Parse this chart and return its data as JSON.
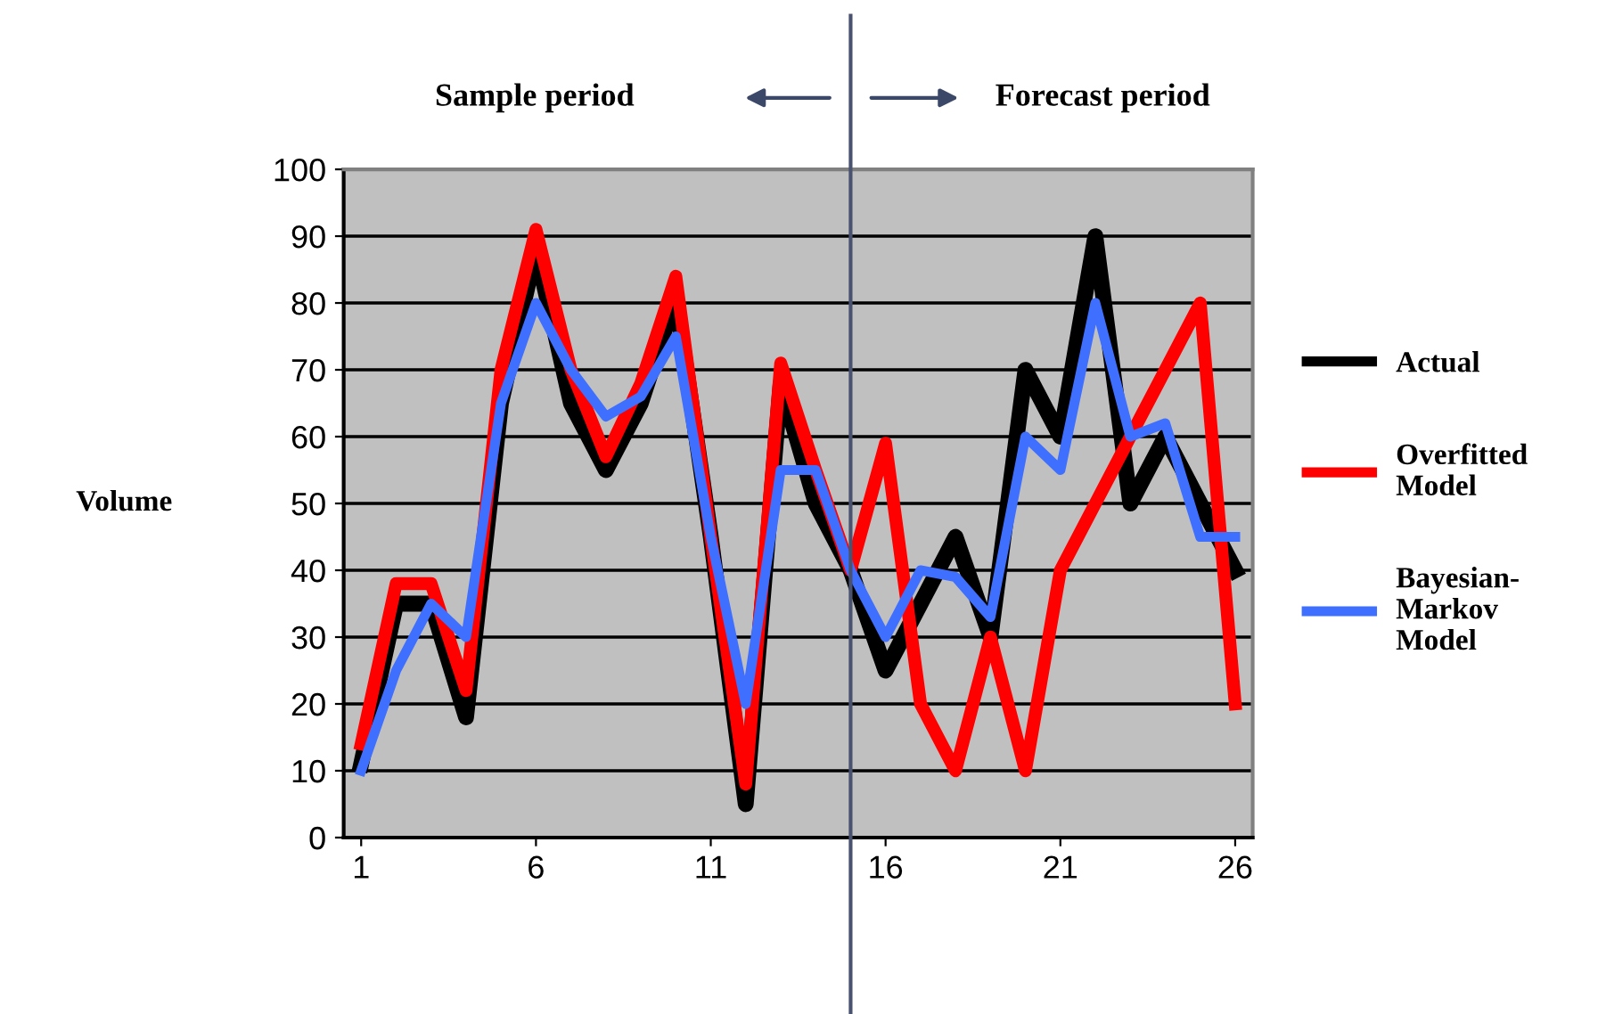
{
  "chart_data": {
    "type": "line",
    "ylabel": "Volume",
    "x": [
      1,
      2,
      3,
      4,
      5,
      6,
      7,
      8,
      9,
      10,
      11,
      12,
      13,
      14,
      15,
      16,
      17,
      18,
      19,
      20,
      21,
      22,
      23,
      24,
      25,
      26
    ],
    "series": [
      {
        "name": "Actual",
        "color": "#000000",
        "values": [
          11,
          35,
          35,
          18,
          65,
          88,
          65,
          55,
          65,
          81,
          45,
          5,
          68,
          50,
          40,
          25,
          35,
          45,
          30,
          70,
          60,
          90,
          50,
          60,
          50,
          40
        ]
      },
      {
        "name": "Overfitted Model",
        "color": "#ff0000",
        "values": [
          14,
          38,
          38,
          22,
          70,
          91,
          70,
          57,
          68,
          84,
          45,
          8,
          71,
          55,
          40,
          59,
          20,
          10,
          30,
          10,
          40,
          50,
          60,
          70,
          80,
          20
        ]
      },
      {
        "name": "Bayesian-Markov Model",
        "color": "#3f6fff",
        "values": [
          10,
          25,
          35,
          30,
          65,
          80,
          70,
          63,
          66,
          75,
          45,
          20,
          55,
          55,
          40,
          30,
          40,
          39,
          33,
          60,
          55,
          80,
          60,
          62,
          45,
          45
        ]
      }
    ],
    "xlim": [
      0.5,
      26.5
    ],
    "xticks": [
      1,
      6,
      11,
      16,
      21,
      26
    ],
    "ylim": [
      0,
      100
    ],
    "yticks": [
      0,
      10,
      20,
      30,
      40,
      50,
      60,
      70,
      80,
      90,
      100
    ],
    "grid": "y",
    "legend": "right",
    "marker": "none",
    "line_style": "solid",
    "ref_lines": [
      {
        "axis": "x",
        "value": 15,
        "color": "#4a5270"
      }
    ],
    "annotations": [
      "Sample period",
      "Forecast period"
    ]
  }
}
